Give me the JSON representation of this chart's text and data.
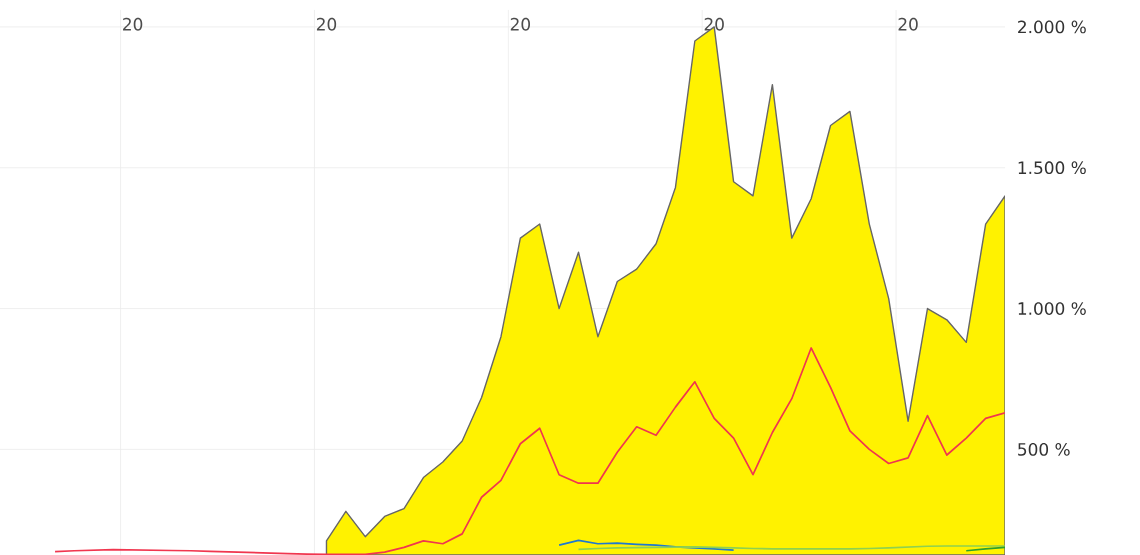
{
  "chart_data": {
    "type": "line",
    "grid": true,
    "categories": [
      null,
      null,
      null,
      null,
      null,
      null,
      "20",
      null,
      null,
      null,
      null,
      null,
      null,
      null,
      null,
      null,
      "20",
      null,
      null,
      null,
      null,
      null,
      null,
      null,
      null,
      null,
      "20",
      null,
      null,
      null,
      null,
      null,
      null,
      null,
      null,
      null,
      "20",
      null,
      null,
      null,
      null,
      null,
      null,
      null,
      null,
      null,
      "20",
      null,
      null,
      null,
      null,
      null
    ],
    "ylim": [
      125,
      2060
    ],
    "yticks": [
      {
        "value": 500,
        "label": "500 %"
      },
      {
        "value": 1000,
        "label": "1.000 %"
      },
      {
        "value": 1500,
        "label": "1.500 %"
      },
      {
        "value": 2000,
        "label": "2.000 %"
      }
    ],
    "series": [
      {
        "type": "area",
        "color": "#fff200",
        "values": [
          null,
          null,
          null,
          null,
          null,
          null,
          null,
          null,
          null,
          null,
          null,
          null,
          null,
          null,
          null,
          null,
          175,
          280,
          190,
          262,
          290,
          400,
          455,
          530,
          684,
          900,
          1250,
          1300,
          1000,
          1200,
          900,
          1096,
          1140,
          1230,
          1430,
          1950,
          2000,
          1450,
          1400,
          1795,
          1250,
          1390,
          1650,
          1700,
          1300,
          1035,
          600,
          1000,
          960,
          880,
          1300,
          1400
        ]
      },
      {
        "color": "#f0364f",
        "values": [
          null,
          null,
          137,
          140,
          142,
          144,
          143,
          142,
          141,
          140,
          138,
          136,
          134,
          132,
          130,
          128,
          127,
          127,
          127,
          135,
          152,
          175,
          165,
          200,
          330,
          390,
          520,
          575,
          410,
          380,
          380,
          490,
          580,
          550,
          650,
          740,
          610,
          540,
          410,
          560,
          680,
          860,
          720,
          566,
          500,
          450,
          470,
          620,
          480,
          540,
          610,
          630
        ]
      },
      {
        "color": "#1f78d1",
        "values": [
          null,
          null,
          null,
          null,
          null,
          null,
          null,
          null,
          null,
          null,
          null,
          null,
          null,
          null,
          null,
          null,
          null,
          null,
          null,
          null,
          null,
          null,
          null,
          null,
          null,
          null,
          null,
          null,
          160,
          177,
          165,
          167,
          163,
          160,
          154,
          150,
          147,
          142,
          null,
          null,
          null,
          null,
          null,
          null,
          null,
          null,
          null,
          null,
          null,
          null,
          null,
          null
        ]
      },
      {
        "color": "#8fd14f",
        "values": [
          null,
          null,
          null,
          null,
          null,
          null,
          null,
          null,
          null,
          null,
          null,
          null,
          null,
          null,
          null,
          null,
          null,
          null,
          null,
          null,
          null,
          null,
          null,
          null,
          null,
          null,
          null,
          null,
          null,
          145,
          148,
          150,
          151,
          152,
          153,
          154,
          152,
          150,
          148,
          147,
          147,
          147,
          147,
          147,
          148,
          150,
          153,
          156,
          157,
          157,
          157,
          157
        ]
      },
      {
        "color": "#2ca02c",
        "values": [
          null,
          null,
          null,
          null,
          null,
          null,
          null,
          null,
          null,
          null,
          null,
          null,
          null,
          null,
          null,
          null,
          null,
          null,
          null,
          null,
          null,
          null,
          null,
          null,
          null,
          null,
          null,
          null,
          null,
          null,
          null,
          null,
          null,
          null,
          null,
          null,
          null,
          null,
          null,
          null,
          null,
          null,
          null,
          null,
          null,
          null,
          null,
          null,
          null,
          140,
          147,
          152
        ]
      }
    ]
  }
}
